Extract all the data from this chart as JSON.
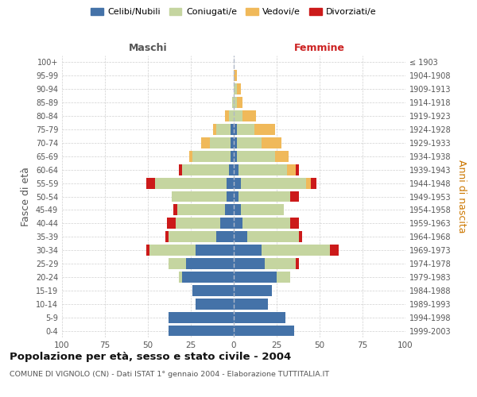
{
  "age_groups": [
    "0-4",
    "5-9",
    "10-14",
    "15-19",
    "20-24",
    "25-29",
    "30-34",
    "35-39",
    "40-44",
    "45-49",
    "50-54",
    "55-59",
    "60-64",
    "65-69",
    "70-74",
    "75-79",
    "80-84",
    "85-89",
    "90-94",
    "95-99",
    "100+"
  ],
  "birth_years": [
    "1999-2003",
    "1994-1998",
    "1989-1993",
    "1984-1988",
    "1979-1983",
    "1974-1978",
    "1969-1973",
    "1964-1968",
    "1959-1963",
    "1954-1958",
    "1949-1953",
    "1944-1948",
    "1939-1943",
    "1934-1938",
    "1929-1933",
    "1924-1928",
    "1919-1923",
    "1914-1918",
    "1909-1913",
    "1904-1908",
    "≤ 1903"
  ],
  "colors": {
    "celibi": "#4472a8",
    "coniugati": "#c5d5a0",
    "vedovi": "#f0b95a",
    "divorziati": "#cc1a1a"
  },
  "maschi_celibi": [
    38,
    38,
    22,
    24,
    30,
    28,
    22,
    10,
    8,
    5,
    4,
    4,
    3,
    2,
    2,
    2,
    0,
    0,
    0,
    0,
    0
  ],
  "maschi_coniugati": [
    0,
    0,
    0,
    0,
    2,
    10,
    27,
    28,
    26,
    28,
    32,
    42,
    27,
    22,
    12,
    8,
    3,
    1,
    0,
    0,
    0
  ],
  "maschi_vedovi": [
    0,
    0,
    0,
    0,
    0,
    0,
    0,
    0,
    0,
    0,
    0,
    0,
    0,
    2,
    5,
    2,
    2,
    0,
    0,
    0,
    0
  ],
  "maschi_divorziati": [
    0,
    0,
    0,
    0,
    0,
    0,
    2,
    2,
    5,
    2,
    0,
    5,
    2,
    0,
    0,
    0,
    0,
    0,
    0,
    0,
    0
  ],
  "femmine_celibi": [
    35,
    30,
    20,
    22,
    25,
    18,
    16,
    8,
    5,
    4,
    3,
    4,
    3,
    2,
    2,
    2,
    0,
    0,
    0,
    0,
    0
  ],
  "femmine_coniugati": [
    0,
    0,
    0,
    0,
    8,
    18,
    40,
    30,
    28,
    25,
    30,
    38,
    28,
    22,
    14,
    10,
    5,
    2,
    2,
    0,
    0
  ],
  "femmine_vedovi": [
    0,
    0,
    0,
    0,
    0,
    0,
    0,
    0,
    0,
    0,
    0,
    3,
    5,
    8,
    12,
    12,
    8,
    3,
    2,
    2,
    0
  ],
  "femmine_divorziati": [
    0,
    0,
    0,
    0,
    0,
    2,
    5,
    2,
    5,
    0,
    5,
    3,
    2,
    0,
    0,
    0,
    0,
    0,
    0,
    0,
    0
  ],
  "title": "Popolazione per età, sesso e stato civile - 2004",
  "subtitle": "COMUNE DI VIGNOLO (CN) - Dati ISTAT 1° gennaio 2004 - Elaborazione TUTTITALIA.IT",
  "xlabel_left": "Maschi",
  "xlabel_right": "Femmine",
  "ylabel": "Fasce di età",
  "ylabel_right": "Anni di nascita",
  "xlim": 100,
  "legend_labels": [
    "Celibi/Nubili",
    "Coniugati/e",
    "Vedovi/e",
    "Divorziati/e"
  ],
  "background_color": "#ffffff",
  "grid_color": "#cccccc"
}
